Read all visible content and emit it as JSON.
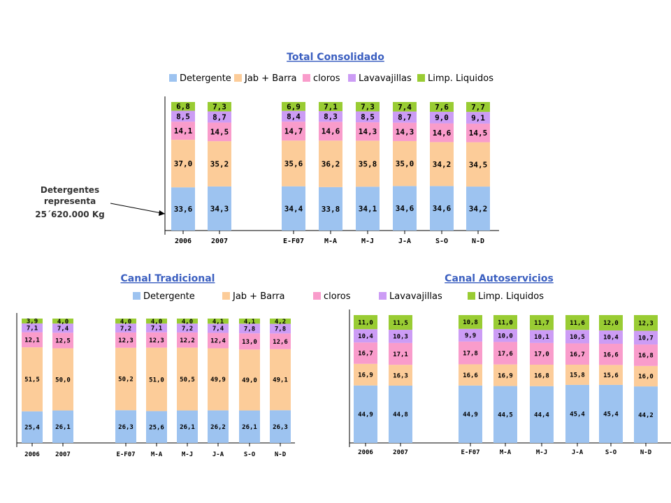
{
  "colors": {
    "Detergente": "#9DC3F0",
    "Jab + Barra": "#FCCC99",
    "cloros": "#F99CCB",
    "Lavavajillas": "#CC9CF5",
    "Limp. Liquidos": "#99CC33",
    "title": "#3B5FC0"
  },
  "annotation": {
    "lines": [
      "Detergentes",
      "representa",
      "25´620.000  Kg"
    ]
  },
  "chart_data": [
    {
      "type": "bar",
      "stacked": true,
      "title": "Total Consolidado",
      "legend_placement": "top",
      "categories": [
        "2006",
        "2007",
        "E-F07",
        "M-A",
        "M-J",
        "J-A",
        "S-O",
        "N-D"
      ],
      "series": [
        {
          "name": "Detergente",
          "values": [
            "33,6",
            "34,3",
            "34,4",
            "33,8",
            "34,1",
            "34,6",
            "34,6",
            "34,2"
          ]
        },
        {
          "name": "Jab + Barra",
          "values": [
            "37,0",
            "35,2",
            "35,6",
            "36,2",
            "35,8",
            "35,0",
            "34,2",
            "34,5"
          ]
        },
        {
          "name": "cloros",
          "values": [
            "14,1",
            "14,5",
            "14,7",
            "14,6",
            "14,3",
            "14,3",
            "14,6",
            "14,5"
          ]
        },
        {
          "name": "Lavavajillas",
          "values": [
            "8,5",
            "8,7",
            "8,4",
            "8,3",
            "8,5",
            "8,7",
            "9,0",
            "9,1"
          ]
        },
        {
          "name": "Limp. Liquidos",
          "values": [
            "6,8",
            "7,3",
            "6,9",
            "7,1",
            "7,3",
            "7,4",
            "7,6",
            "7,7"
          ]
        }
      ]
    },
    {
      "type": "bar",
      "stacked": true,
      "title": "Canal Tradicional",
      "legend_placement": "top",
      "categories": [
        "2006",
        "2007",
        "E-F07",
        "M-A",
        "M-J",
        "J-A",
        "S-O",
        "N-D"
      ],
      "series": [
        {
          "name": "Detergente",
          "values": [
            "25,4",
            "26,1",
            "26,3",
            "25,6",
            "26,1",
            "26,2",
            "26,1",
            "26,3"
          ]
        },
        {
          "name": "Jab + Barra",
          "values": [
            "51,5",
            "50,0",
            "50,2",
            "51,0",
            "50,5",
            "49,9",
            "49,0",
            "49,1"
          ]
        },
        {
          "name": "cloros",
          "values": [
            "12,1",
            "12,5",
            "12,3",
            "12,3",
            "12,2",
            "12,4",
            "13,0",
            "12,6"
          ]
        },
        {
          "name": "Lavavajillas",
          "values": [
            "7,1",
            "7,4",
            "7,2",
            "7,1",
            "7,2",
            "7,4",
            "7,8",
            "7,8"
          ]
        },
        {
          "name": "Limp. Liquidos",
          "values": [
            "3,9",
            "4,0",
            "4,0",
            "4,0",
            "4,0",
            "4,1",
            "4,1",
            "4,2"
          ]
        }
      ]
    },
    {
      "type": "bar",
      "stacked": true,
      "title": "Canal Autoservicios",
      "legend_placement": "top",
      "categories": [
        "2006",
        "2007",
        "E-F07",
        "M-A",
        "M-J",
        "J-A",
        "S-O",
        "N-D"
      ],
      "series": [
        {
          "name": "Detergente",
          "values": [
            "44,9",
            "44,8",
            "44,9",
            "44,5",
            "44,4",
            "45,4",
            "45,4",
            "44,2"
          ]
        },
        {
          "name": "Jab + Barra",
          "values": [
            "16,9",
            "16,3",
            "16,6",
            "16,9",
            "16,8",
            "15,8",
            "15,6",
            "16,0"
          ]
        },
        {
          "name": "cloros",
          "values": [
            "16,7",
            "17,1",
            "17,8",
            "17,6",
            "17,0",
            "16,7",
            "16,6",
            "16,8"
          ]
        },
        {
          "name": "Lavavajillas",
          "values": [
            "10,4",
            "10,3",
            "9,9",
            "10,0",
            "10,1",
            "10,5",
            "10,4",
            "10,7"
          ]
        },
        {
          "name": "Limp. Liquidos",
          "values": [
            "11,0",
            "11,5",
            "10,8",
            "11,0",
            "11,7",
            "11,6",
            "12,0",
            "12,3"
          ]
        }
      ]
    }
  ]
}
